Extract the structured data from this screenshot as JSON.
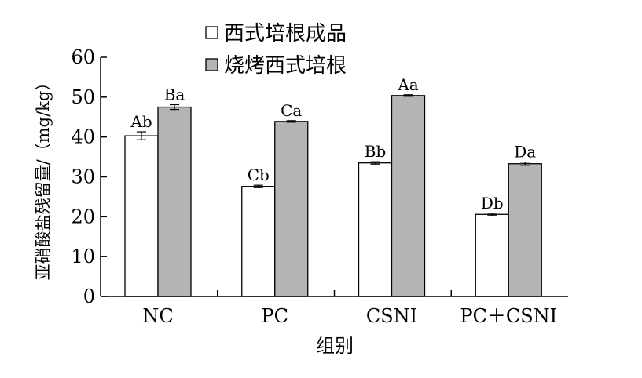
{
  "chart_data": {
    "type": "bar",
    "categories": [
      "NC",
      "PC",
      "CSNI",
      "PC＋CSNI"
    ],
    "series": [
      {
        "name": "西式培根成品",
        "color": "#ffffff",
        "values": [
          40.3,
          27.6,
          33.5,
          20.6
        ],
        "errors": [
          1.0,
          0.3,
          0.3,
          0.3
        ],
        "labels": [
          "Ab",
          "Cb",
          "Bb",
          "Db"
        ]
      },
      {
        "name": "烧烤西式培根",
        "color": "#b4b4b4",
        "values": [
          47.5,
          43.9,
          50.4,
          33.3
        ],
        "errors": [
          0.6,
          0.2,
          0.2,
          0.4
        ],
        "labels": [
          "Ba",
          "Ca",
          "Aa",
          "Da"
        ]
      }
    ],
    "xlabel": "组别",
    "ylabel": "亚硝酸盐残留量/（mg/kg）",
    "ylim": [
      0,
      60
    ],
    "yticks": [
      0,
      10,
      20,
      30,
      40,
      50,
      60
    ],
    "legend_position": "top-left",
    "grid": false
  }
}
